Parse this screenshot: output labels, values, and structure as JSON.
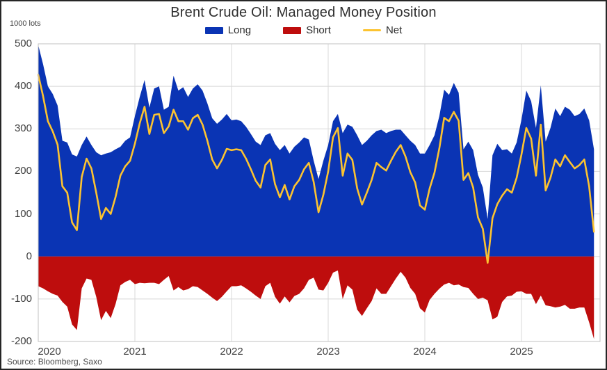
{
  "header": {
    "title": "Brent Crude Oil: Managed Money Position",
    "unit_label": "1000 lots"
  },
  "legend": {
    "items": [
      {
        "id": "long",
        "label": "Long",
        "color": "#0a34b4",
        "swatch": "rect"
      },
      {
        "id": "short",
        "label": "Short",
        "color": "#be0d0d",
        "swatch": "rect"
      },
      {
        "id": "net",
        "label": "Net",
        "color": "#fcc330",
        "swatch": "line"
      }
    ]
  },
  "source": "Source: Bloomberg, Saxo",
  "colors": {
    "long_fill": "#0a34b4",
    "short_fill": "#be0d0d",
    "net_line": "#fcc330",
    "grid": "#d8d8d8",
    "plot_border": "#c2c2c2"
  },
  "chart_data": {
    "type": "area",
    "title": "Brent Crude Oil: Managed Money Position",
    "ylabel": "1000 lots",
    "grid": true,
    "legend_position": "top",
    "ylim": [
      -200,
      500
    ],
    "xlim": [
      2020.0,
      2025.82
    ],
    "y_ticks": [
      500,
      400,
      300,
      200,
      100,
      0,
      -100,
      -200
    ],
    "x_ticks": [
      2020,
      2021,
      2022,
      2023,
      2024,
      2025
    ],
    "x": [
      2020.0,
      2020.05,
      2020.1,
      2020.15,
      2020.2,
      2020.25,
      2020.3,
      2020.35,
      2020.4,
      2020.45,
      2020.5,
      2020.55,
      2020.6,
      2020.65,
      2020.7,
      2020.75,
      2020.8,
      2020.85,
      2020.9,
      2020.95,
      2021.0,
      2021.05,
      2021.1,
      2021.15,
      2021.2,
      2021.25,
      2021.3,
      2021.35,
      2021.4,
      2021.45,
      2021.5,
      2021.55,
      2021.6,
      2021.65,
      2021.7,
      2021.75,
      2021.8,
      2021.85,
      2021.9,
      2021.95,
      2022.0,
      2022.05,
      2022.1,
      2022.15,
      2022.2,
      2022.25,
      2022.3,
      2022.35,
      2022.4,
      2022.45,
      2022.5,
      2022.55,
      2022.6,
      2022.65,
      2022.7,
      2022.75,
      2022.8,
      2022.85,
      2022.9,
      2022.95,
      2023.0,
      2023.05,
      2023.1,
      2023.15,
      2023.2,
      2023.25,
      2023.3,
      2023.35,
      2023.4,
      2023.45,
      2023.5,
      2023.55,
      2023.6,
      2023.65,
      2023.7,
      2023.75,
      2023.8,
      2023.85,
      2023.9,
      2023.95,
      2024.0,
      2024.05,
      2024.1,
      2024.15,
      2024.2,
      2024.25,
      2024.3,
      2024.35,
      2024.4,
      2024.45,
      2024.5,
      2024.55,
      2024.6,
      2024.65,
      2024.7,
      2024.75,
      2024.8,
      2024.85,
      2024.9,
      2024.95,
      2025.0,
      2025.05,
      2025.1,
      2025.15,
      2025.2,
      2025.25,
      2025.3,
      2025.35,
      2025.4,
      2025.45,
      2025.5,
      2025.55,
      2025.6,
      2025.65,
      2025.7,
      2025.75
    ],
    "series": [
      {
        "name": "Long",
        "type": "area",
        "color": "#0a34b4",
        "values": [
          497,
          452,
          400,
          382,
          355,
          272,
          268,
          240,
          235,
          262,
          282,
          262,
          245,
          238,
          242,
          245,
          252,
          258,
          272,
          280,
          330,
          375,
          415,
          350,
          395,
          400,
          345,
          352,
          425,
          390,
          398,
          375,
          395,
          405,
          390,
          360,
          325,
          312,
          322,
          335,
          320,
          322,
          318,
          305,
          288,
          270,
          262,
          285,
          290,
          265,
          250,
          262,
          242,
          258,
          268,
          280,
          275,
          225,
          182,
          225,
          262,
          318,
          335,
          290,
          310,
          305,
          285,
          262,
          272,
          285,
          295,
          298,
          290,
          295,
          298,
          298,
          285,
          272,
          262,
          242,
          242,
          262,
          285,
          330,
          392,
          380,
          408,
          385,
          252,
          270,
          250,
          192,
          162,
          88,
          238,
          265,
          250,
          252,
          242,
          268,
          322,
          390,
          365,
          302,
          402,
          270,
          302,
          348,
          330,
          352,
          345,
          330,
          335,
          348,
          320,
          252
        ]
      },
      {
        "name": "Short",
        "type": "area",
        "color": "#be0d0d",
        "values": [
          -70,
          -75,
          -82,
          -88,
          -92,
          -107,
          -118,
          -160,
          -173,
          -75,
          -52,
          -55,
          -95,
          -150,
          -128,
          -145,
          -112,
          -68,
          -60,
          -55,
          -65,
          -62,
          -63,
          -62,
          -62,
          -65,
          -55,
          -46,
          -80,
          -72,
          -80,
          -77,
          -70,
          -72,
          -80,
          -88,
          -97,
          -105,
          -95,
          -82,
          -70,
          -70,
          -68,
          -75,
          -83,
          -92,
          -100,
          -70,
          -62,
          -95,
          -111,
          -94,
          -108,
          -93,
          -88,
          -75,
          -55,
          -50,
          -78,
          -80,
          -62,
          -38,
          -33,
          -100,
          -68,
          -78,
          -125,
          -140,
          -122,
          -105,
          -75,
          -88,
          -88,
          -70,
          -52,
          -36,
          -50,
          -74,
          -88,
          -122,
          -132,
          -102,
          -88,
          -76,
          -66,
          -62,
          -68,
          -66,
          -72,
          -74,
          -88,
          -100,
          -97,
          -103,
          -148,
          -142,
          -107,
          -94,
          -92,
          -83,
          -82,
          -88,
          -88,
          -112,
          -92,
          -115,
          -117,
          -120,
          -118,
          -114,
          -123,
          -123,
          -120,
          -120,
          -155,
          -194
        ]
      },
      {
        "name": "Net",
        "type": "line",
        "color": "#fcc330",
        "values": [
          427,
          377,
          318,
          294,
          263,
          165,
          150,
          80,
          62,
          187,
          230,
          207,
          150,
          88,
          114,
          100,
          140,
          190,
          212,
          225,
          265,
          313,
          352,
          288,
          333,
          335,
          290,
          306,
          345,
          318,
          318,
          298,
          325,
          333,
          310,
          272,
          228,
          207,
          227,
          253,
          250,
          252,
          250,
          230,
          205,
          178,
          162,
          215,
          228,
          170,
          139,
          168,
          134,
          165,
          180,
          205,
          220,
          175,
          104,
          145,
          200,
          280,
          302,
          190,
          242,
          227,
          160,
          122,
          150,
          180,
          220,
          210,
          202,
          225,
          246,
          262,
          235,
          198,
          174,
          120,
          110,
          160,
          197,
          254,
          326,
          318,
          340,
          319,
          180,
          196,
          162,
          92,
          65,
          -15,
          90,
          123,
          143,
          158,
          150,
          185,
          240,
          302,
          277,
          190,
          310,
          155,
          185,
          228,
          212,
          238,
          222,
          207,
          215,
          228,
          165,
          58
        ]
      }
    ]
  }
}
